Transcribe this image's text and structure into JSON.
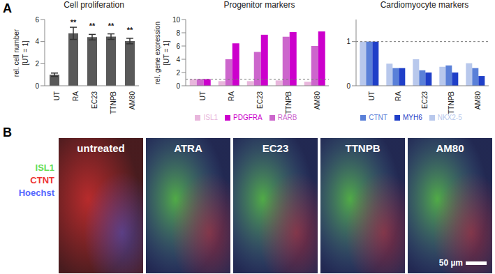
{
  "panel_labels": [
    "A",
    "B"
  ],
  "chart_data": [
    {
      "type": "bar",
      "title": "Cell proliferation",
      "ylabel": [
        "rel. cell number",
        "[UT = 1]"
      ],
      "categories": [
        "UT",
        "RA",
        "EC23",
        "TTNPB",
        "AM80"
      ],
      "values": [
        1,
        4.75,
        4.4,
        4.45,
        4.05
      ],
      "error": [
        0.15,
        0.55,
        0.25,
        0.25,
        0.25
      ],
      "significance": [
        null,
        "**",
        "**",
        "**",
        "**"
      ],
      "color": "#595959",
      "ylim": [
        0,
        6
      ],
      "yticks": [
        0,
        2,
        4,
        6
      ],
      "grid": false
    },
    {
      "type": "bar",
      "title": "Progenitor markers",
      "ylabel": [
        "rel. gene expression",
        "[UT = 1]"
      ],
      "categories": [
        "UT",
        "RA",
        "EC23",
        "TTNPB",
        "AM80"
      ],
      "series": [
        {
          "name": "ISL1",
          "color": "#e8b6dc",
          "values": [
            1,
            0.7,
            0.7,
            0.8,
            0.6
          ]
        },
        {
          "name": "RARB",
          "color": "#cc66cc",
          "values": [
            1,
            4,
            5.1,
            7.4,
            6
          ]
        },
        {
          "name": "PDGFRA",
          "color": "#cc00cc",
          "values": [
            1,
            6.4,
            7.7,
            8.1,
            8.2
          ]
        }
      ],
      "reference_line": 1,
      "ylim": [
        0,
        10
      ],
      "yticks": [
        0,
        2,
        4,
        6,
        8,
        10
      ],
      "grid": false,
      "legend": "bottom"
    },
    {
      "type": "bar",
      "title": "Cardiomyocyte markers",
      "categories": [
        "UT",
        "RA",
        "EC23",
        "TTNPB",
        "AM80"
      ],
      "series": [
        {
          "name": "NKX2-5",
          "color": "#b8c8ec",
          "values": [
            1,
            0.5,
            0.6,
            0.43,
            0.51
          ]
        },
        {
          "name": "CTNT",
          "color": "#5a80d8",
          "values": [
            1,
            0.4,
            0.35,
            0.46,
            0.4
          ]
        },
        {
          "name": "MYH6",
          "color": "#1f3fc8",
          "values": [
            1,
            0.4,
            0.3,
            0.3,
            0.22
          ]
        }
      ],
      "reference_line": 1,
      "ylim": [
        0,
        1.5
      ],
      "yticks": [
        0,
        1
      ],
      "grid": false,
      "legend": "bottom"
    }
  ],
  "images": {
    "channels": [
      {
        "name": "ISL1",
        "color": "#66dd55"
      },
      {
        "name": "CTNT",
        "color": "#ee3333"
      },
      {
        "name": "Hoechst",
        "color": "#5566ff"
      }
    ],
    "titles": [
      "untreated",
      "ATRA",
      "EC23",
      "TTNPB",
      "AM80"
    ],
    "scale_bar": "50 µm"
  }
}
